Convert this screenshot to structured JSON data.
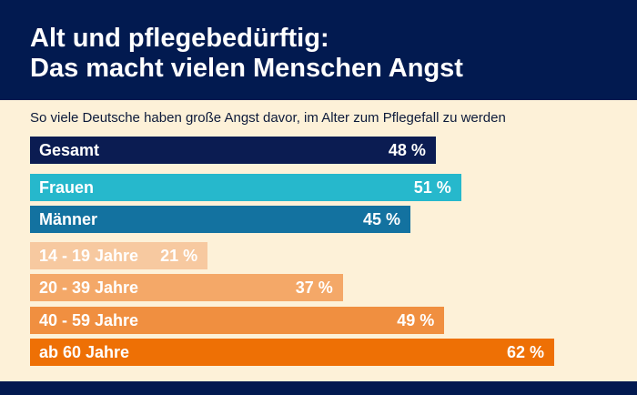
{
  "chart_data": {
    "type": "bar",
    "orientation": "horizontal",
    "title": "Alt und pflegebedürftig:\nDas macht vielen Menschen Angst",
    "title_lines": [
      "Alt und pflegebedürftig:",
      "Das macht vielen Menschen Angst"
    ],
    "subtitle": "So viele Deutsche haben große Angst davor, im Alter zum Pflegefall zu werden",
    "unit": "%",
    "xlim": [
      0,
      62
    ],
    "grid": false,
    "categories": [
      "Gesamt",
      "Frauen",
      "Männer",
      "14 - 19 Jahre",
      "20 - 39 Jahre",
      "40 - 59 Jahre",
      "ab 60 Jahre"
    ],
    "values": [
      48,
      51,
      45,
      21,
      37,
      49,
      62
    ],
    "value_labels": [
      "48 %",
      "51 %",
      "45 %",
      "21 %",
      "37 %",
      "49 %",
      "62 %"
    ],
    "colors": [
      "#0b1c52",
      "#26b8cc",
      "#1372a0",
      "#f7c9a0",
      "#f4a868",
      "#f08f40",
      "#ee7005"
    ]
  },
  "colors": {
    "header": "#021a50",
    "background": "#fdf1d8"
  }
}
